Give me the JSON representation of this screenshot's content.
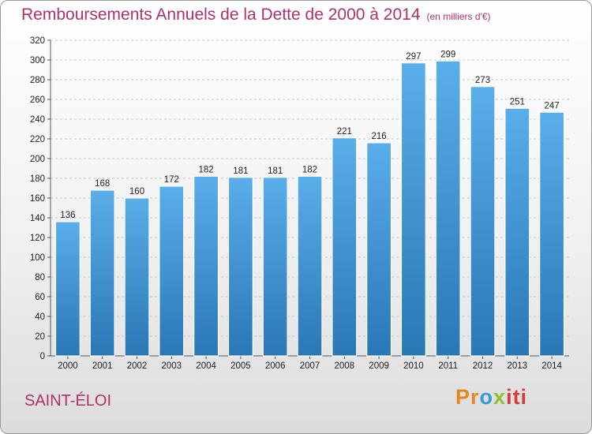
{
  "header": {
    "title": "Remboursements Annuels de la Dette de 2000 à 2014",
    "unit": "(en milliers d'€)"
  },
  "footer": {
    "commune": "SAINT-ÉLOI",
    "logo": {
      "letters": [
        "Pr",
        "o",
        "x",
        "iti"
      ]
    }
  },
  "colors": {
    "bar_top": "#5aaeea",
    "bar_bottom": "#2a77b6",
    "title": "#b0306a"
  },
  "chart_data": {
    "type": "bar",
    "title": "Remboursements Annuels de la Dette de 2000 à 2014",
    "categories": [
      "2000",
      "2001",
      "2002",
      "2003",
      "2004",
      "2005",
      "2006",
      "2007",
      "2008",
      "2009",
      "2010",
      "2011",
      "2012",
      "2013",
      "2014"
    ],
    "values": [
      136,
      168,
      160,
      172,
      182,
      181,
      181,
      182,
      221,
      216,
      297,
      299,
      273,
      251,
      247
    ],
    "ylim": [
      0,
      320
    ],
    "yticks": [
      0,
      20,
      40,
      60,
      80,
      100,
      120,
      140,
      160,
      180,
      200,
      220,
      240,
      260,
      280,
      300,
      320
    ],
    "grid": true,
    "legend": "none"
  }
}
